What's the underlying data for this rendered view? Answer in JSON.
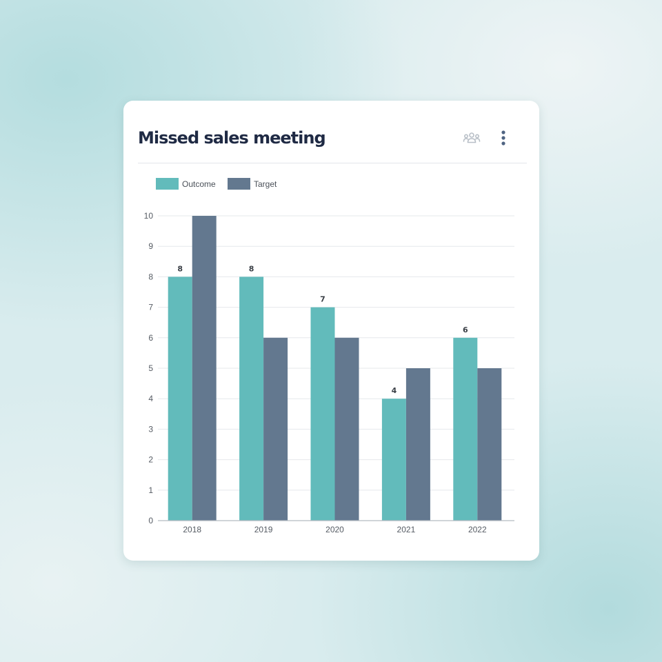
{
  "card": {
    "title": "Missed sales meeting",
    "icons": {
      "people": "people-group-icon",
      "more": "more-vertical-icon"
    }
  },
  "colors": {
    "outcome": "#62bbbb",
    "target": "#63788f",
    "grid": "#e6e8eb",
    "axis": "#b5bac1",
    "title": "#1f2a44",
    "icon_people": "#b8bfc7",
    "icon_more": "#4f6482"
  },
  "chart_data": {
    "type": "bar",
    "categories": [
      "2018",
      "2019",
      "2020",
      "2021",
      "2022"
    ],
    "series": [
      {
        "name": "Outcome",
        "values": [
          8,
          8,
          7,
          4,
          6
        ],
        "color": "#62bbbb",
        "show_labels": true
      },
      {
        "name": "Target",
        "values": [
          10,
          6,
          6,
          5,
          5
        ],
        "color": "#63788f",
        "show_labels": false
      }
    ],
    "y_ticks": [
      "0",
      "1",
      "2",
      "3",
      "4",
      "5",
      "6",
      "7",
      "8",
      "9",
      "10"
    ],
    "ylim": [
      0,
      10
    ],
    "grid": true,
    "legend": "top-left",
    "title": "",
    "xlabel": "",
    "ylabel": ""
  }
}
